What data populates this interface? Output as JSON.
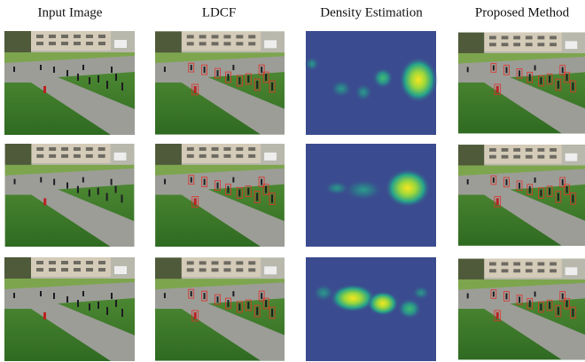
{
  "columns": [
    "Input Image",
    "LDCF",
    "Density Estimation",
    "Proposed Method"
  ]
}
